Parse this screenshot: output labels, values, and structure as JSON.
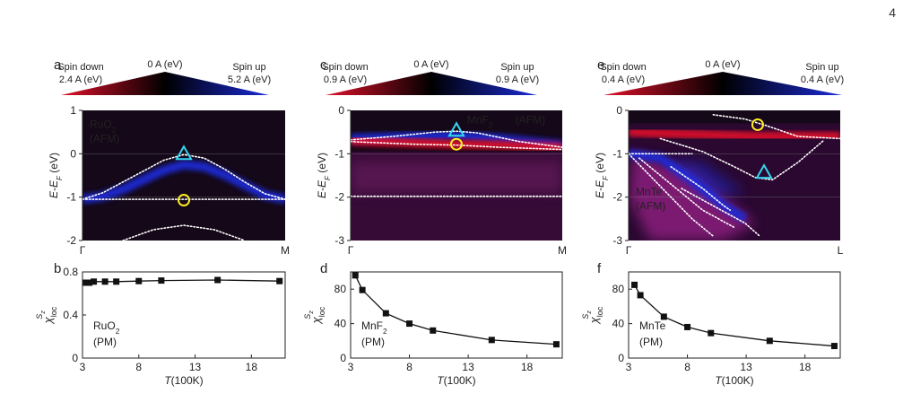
{
  "page_number": "4",
  "colorbar": {
    "left_label": "Spin down",
    "center_label": "0 A (eV)",
    "right_label": "Spin up"
  },
  "colors": {
    "spin_down": "#e0102a",
    "spin_up": "#1a2ad8",
    "zero": "#150818",
    "magenta": "#c02aa8",
    "triangle": "#35d6ee",
    "circle": "#ffee22",
    "dots": "#ffffff"
  },
  "chart_data": [
    {
      "panel": "a",
      "type": "heatmap",
      "material": "RuO2",
      "phase": "(AFM)",
      "colorbar_down": "2.4 A (eV)",
      "colorbar_up": "5.2 A (eV)",
      "ylabel": "E-EF (eV)",
      "ylim": [
        -2,
        1
      ],
      "yticks": [
        "1",
        "0",
        "-1",
        "-2"
      ],
      "xticks": [
        "Γ",
        "M"
      ],
      "bands": [
        {
          "spin": "up",
          "points": [
            [
              0.0,
              -1.05
            ],
            [
              0.1,
              -0.98
            ],
            [
              0.2,
              -0.82
            ],
            [
              0.3,
              -0.6
            ],
            [
              0.4,
              -0.38
            ],
            [
              0.5,
              -0.25
            ],
            [
              0.6,
              -0.3
            ],
            [
              0.7,
              -0.48
            ],
            [
              0.8,
              -0.72
            ],
            [
              0.9,
              -0.95
            ],
            [
              1.0,
              -1.05
            ]
          ]
        },
        {
          "spin": "down",
          "points": [
            [
              0.0,
              -1.05
            ],
            [
              1.0,
              -1.05
            ]
          ]
        }
      ],
      "dotted_bands": [
        [
          [
            0.0,
            -1.05
          ],
          [
            0.1,
            -0.9
          ],
          [
            0.2,
            -0.65
          ],
          [
            0.3,
            -0.4
          ],
          [
            0.4,
            -0.15
          ],
          [
            0.5,
            -0.02
          ],
          [
            0.6,
            -0.1
          ],
          [
            0.7,
            -0.35
          ],
          [
            0.8,
            -0.65
          ],
          [
            0.9,
            -0.92
          ],
          [
            1.0,
            -1.05
          ]
        ],
        [
          [
            0.0,
            -1.05
          ],
          [
            1.0,
            -1.05
          ]
        ],
        [
          [
            0.2,
            -2.0
          ],
          [
            0.35,
            -1.75
          ],
          [
            0.5,
            -1.65
          ],
          [
            0.65,
            -1.75
          ],
          [
            0.8,
            -2.0
          ]
        ]
      ],
      "triangle": [
        0.5,
        -0.02
      ],
      "circle": [
        0.5,
        -1.07
      ]
    },
    {
      "panel": "c",
      "type": "heatmap",
      "material": "MnF2",
      "phase": "(AFM)",
      "colorbar_down": "0.9 A (eV)",
      "colorbar_up": "0.9 A (eV)",
      "ylabel": "E-EF (eV)",
      "ylim": [
        -3,
        0
      ],
      "yticks": [
        "0",
        "-1",
        "-2",
        "-3"
      ],
      "xticks": [
        "Γ",
        "M"
      ],
      "bands": [
        {
          "spin": "up",
          "points": [
            [
              0.0,
              -0.65
            ],
            [
              0.3,
              -0.6
            ],
            [
              0.5,
              -0.58
            ],
            [
              0.7,
              -0.65
            ],
            [
              1.0,
              -0.8
            ]
          ]
        },
        {
          "spin": "down",
          "points": [
            [
              0.0,
              -0.7
            ],
            [
              0.3,
              -0.75
            ],
            [
              0.5,
              -0.78
            ],
            [
              0.7,
              -0.8
            ],
            [
              1.0,
              -0.85
            ]
          ]
        }
      ],
      "dotted_bands": [
        [
          [
            0.0,
            -0.68
          ],
          [
            0.2,
            -0.6
          ],
          [
            0.4,
            -0.5
          ],
          [
            0.5,
            -0.48
          ],
          [
            0.6,
            -0.52
          ],
          [
            0.8,
            -0.72
          ],
          [
            1.0,
            -0.85
          ]
        ],
        [
          [
            0.0,
            -0.72
          ],
          [
            0.3,
            -0.78
          ],
          [
            0.5,
            -0.8
          ],
          [
            0.7,
            -0.85
          ],
          [
            1.0,
            -0.9
          ]
        ],
        [
          [
            0.0,
            -1.98
          ],
          [
            1.0,
            -1.98
          ]
        ]
      ],
      "triangle": [
        0.5,
        -0.48
      ],
      "circle": [
        0.5,
        -0.78
      ]
    },
    {
      "panel": "e",
      "type": "heatmap",
      "material": "MnTe",
      "phase": "(AFM)",
      "colorbar_down": "0.4 A (eV)",
      "colorbar_up": "0.4 A (eV)",
      "ylabel": "E-EF (eV)",
      "ylim": [
        -3,
        0
      ],
      "yticks": [
        "0",
        "-1",
        "-2",
        "-3"
      ],
      "xticks": [
        "Γ",
        "L"
      ],
      "bands": [
        {
          "spin": "up",
          "points": [
            [
              0.0,
              -1.0
            ],
            [
              0.15,
              -1.1
            ],
            [
              0.3,
              -1.6
            ],
            [
              0.45,
              -2.2
            ],
            [
              0.55,
              -2.5
            ]
          ]
        },
        {
          "spin": "down",
          "points": [
            [
              0.0,
              -0.5
            ],
            [
              0.3,
              -0.55
            ],
            [
              0.6,
              -0.6
            ],
            [
              1.0,
              -0.6
            ]
          ]
        }
      ],
      "dotted_bands": [
        [
          [
            0.4,
            -0.1
          ],
          [
            0.55,
            -0.2
          ],
          [
            0.65,
            -0.35
          ],
          [
            0.8,
            -0.6
          ],
          [
            1.0,
            -0.65
          ]
        ],
        [
          [
            0.15,
            -0.65
          ],
          [
            0.35,
            -0.95
          ],
          [
            0.5,
            -1.3
          ],
          [
            0.6,
            -1.55
          ],
          [
            0.68,
            -1.6
          ],
          [
            0.8,
            -1.2
          ],
          [
            0.92,
            -0.7
          ]
        ],
        [
          [
            0.0,
            -1.0
          ],
          [
            0.2,
            -1.0
          ],
          [
            0.3,
            -1.0
          ]
        ],
        [
          [
            0.0,
            -1.0
          ],
          [
            0.1,
            -1.5
          ],
          [
            0.2,
            -2.0
          ],
          [
            0.3,
            -2.5
          ],
          [
            0.4,
            -2.9
          ]
        ],
        [
          [
            0.05,
            -1.1
          ],
          [
            0.15,
            -1.5
          ],
          [
            0.25,
            -1.9
          ],
          [
            0.35,
            -2.3
          ],
          [
            0.5,
            -2.7
          ]
        ],
        [
          [
            0.25,
            -1.8
          ],
          [
            0.4,
            -2.2
          ],
          [
            0.55,
            -2.6
          ],
          [
            0.62,
            -2.9
          ]
        ],
        [
          [
            0.2,
            -1.3
          ],
          [
            0.35,
            -1.8
          ],
          [
            0.45,
            -2.2
          ],
          [
            0.48,
            -2.3
          ]
        ]
      ],
      "triangle": [
        0.64,
        -1.45
      ],
      "circle": [
        0.61,
        -0.33
      ]
    },
    {
      "panel": "b",
      "type": "line",
      "material": "RuO2",
      "phase": "(PM)",
      "ylabel": "χloc^Sz",
      "xlabel": "T(100K)",
      "xlim": [
        3,
        21
      ],
      "xticks": [
        "3",
        "8",
        "13",
        "18"
      ],
      "ylim": [
        0,
        0.8
      ],
      "yticks": [
        "0.8",
        "0.4",
        "0"
      ],
      "x": [
        3.3,
        3.6,
        4,
        5,
        6,
        8,
        10,
        15,
        20.5
      ],
      "y": [
        0.7,
        0.7,
        0.71,
        0.71,
        0.71,
        0.715,
        0.72,
        0.725,
        0.715
      ]
    },
    {
      "panel": "d",
      "type": "line",
      "material": "MnF2",
      "phase": "(PM)",
      "ylabel": "χloc^Sz",
      "xlabel": "T(100K)",
      "xlim": [
        3,
        21
      ],
      "xticks": [
        "3",
        "8",
        "13",
        "18"
      ],
      "ylim": [
        0,
        100
      ],
      "yticks": [
        "80",
        "40",
        "0"
      ],
      "x": [
        3.4,
        4,
        6,
        8,
        10,
        15,
        20.5
      ],
      "y": [
        96,
        79,
        52,
        40,
        32,
        21,
        16
      ]
    },
    {
      "panel": "f",
      "type": "line",
      "material": "MnTe",
      "phase": "(PM)",
      "ylabel": "χloc^Sz",
      "xlabel": "T(100K)",
      "xlim": [
        3,
        21
      ],
      "xticks": [
        "3",
        "8",
        "13",
        "18"
      ],
      "ylim": [
        0,
        100
      ],
      "yticks": [
        "80",
        "40",
        "0"
      ],
      "x": [
        3.5,
        4,
        6,
        8,
        10,
        15,
        20.5
      ],
      "y": [
        85,
        73,
        48,
        36,
        29,
        20,
        14
      ]
    }
  ]
}
